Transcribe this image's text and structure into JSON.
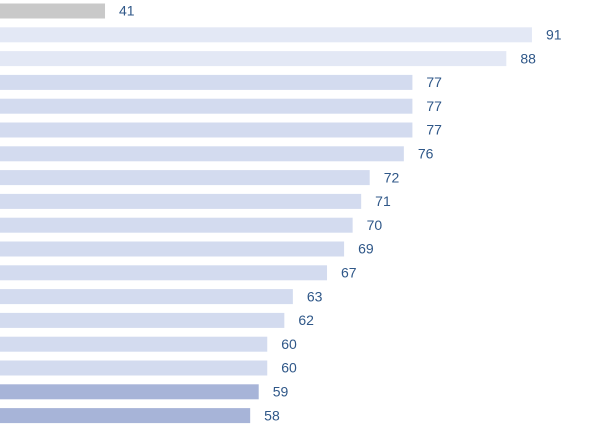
{
  "chart_data": {
    "type": "bar",
    "orientation": "horizontal",
    "values": [
      41,
      91,
      88,
      77,
      77,
      77,
      76,
      72,
      71,
      70,
      69,
      67,
      63,
      62,
      60,
      60,
      59,
      58
    ],
    "colors": [
      "#c9c9c9",
      "#e3e8f5",
      "#e3e8f5",
      "#d3dbef",
      "#d3dbef",
      "#d3dbef",
      "#d3dbef",
      "#d3dbef",
      "#d3dbef",
      "#d3dbef",
      "#d3dbef",
      "#d3dbef",
      "#d3dbef",
      "#d3dbef",
      "#d3dbef",
      "#d3dbef",
      "#a7b4d8",
      "#a7b4d8"
    ],
    "label_color": "#2f5788",
    "xlim": [
      28.7,
      97.8
    ]
  }
}
